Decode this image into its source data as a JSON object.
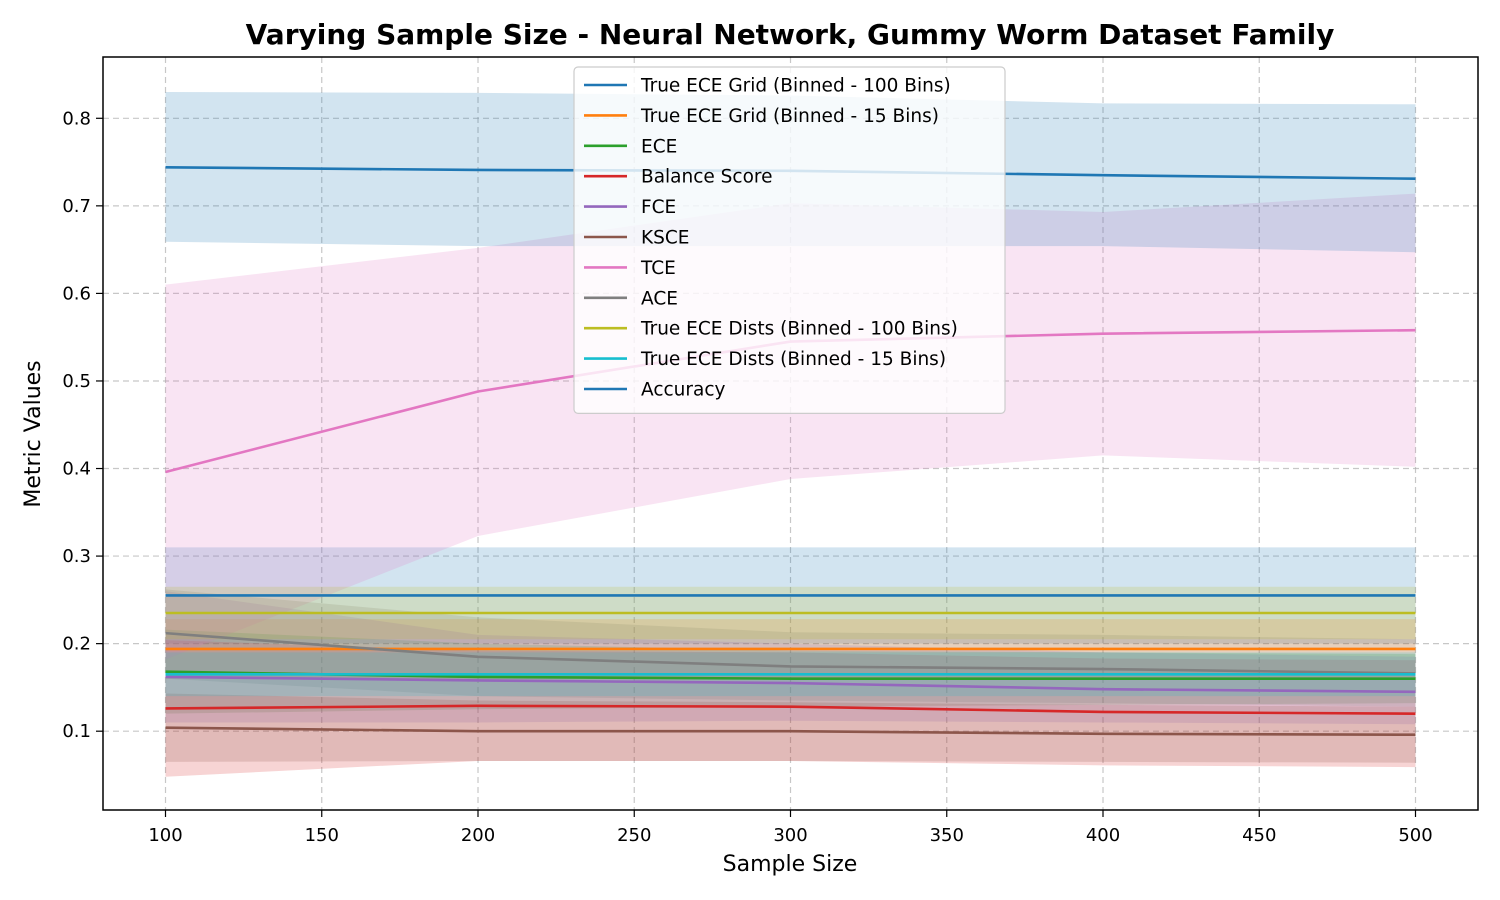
{
  "chart_data": {
    "type": "line",
    "title": "Varying Sample Size - Neural Network, Gummy Worm Dataset Family",
    "xlabel": "Sample Size",
    "ylabel": "Metric Values",
    "xlim": [
      80,
      520
    ],
    "ylim": [
      0.01,
      0.87
    ],
    "x_ticks": [
      100,
      150,
      200,
      250,
      300,
      350,
      400,
      450,
      500
    ],
    "y_ticks": [
      0.1,
      0.2,
      0.3,
      0.4,
      0.5,
      0.6,
      0.7,
      0.8
    ],
    "grid": true,
    "legend_position": "top-center",
    "x": [
      100,
      200,
      300,
      400,
      500
    ],
    "series": [
      {
        "name": "True ECE Grid (Binned - 100 Bins)",
        "color": "#1f77b4",
        "values": [
          0.255,
          0.255,
          0.255,
          0.255,
          0.255
        ],
        "lower": [
          0.2,
          0.2,
          0.2,
          0.2,
          0.2
        ],
        "upper": [
          0.31,
          0.31,
          0.31,
          0.31,
          0.31
        ]
      },
      {
        "name": "True ECE Grid (Binned - 15 Bins)",
        "color": "#ff7f0e",
        "values": [
          0.194,
          0.194,
          0.194,
          0.194,
          0.194
        ],
        "lower": [
          0.16,
          0.16,
          0.16,
          0.16,
          0.16
        ],
        "upper": [
          0.228,
          0.228,
          0.228,
          0.228,
          0.228
        ]
      },
      {
        "name": "ECE",
        "color": "#2ca02c",
        "values": [
          0.168,
          0.162,
          0.16,
          0.16,
          0.16
        ],
        "lower": [
          0.12,
          0.125,
          0.128,
          0.13,
          0.132
        ],
        "upper": [
          0.216,
          0.2,
          0.192,
          0.19,
          0.188
        ]
      },
      {
        "name": "Balance Score",
        "color": "#d62728",
        "values": [
          0.126,
          0.129,
          0.128,
          0.122,
          0.12
        ],
        "lower": [
          0.048,
          0.066,
          0.066,
          0.061,
          0.059
        ],
        "upper": [
          0.204,
          0.192,
          0.19,
          0.183,
          0.181
        ]
      },
      {
        "name": "FCE",
        "color": "#9467bd",
        "values": [
          0.162,
          0.158,
          0.155,
          0.148,
          0.145
        ],
        "lower": [
          0.11,
          0.11,
          0.112,
          0.11,
          0.108
        ],
        "upper": [
          0.26,
          0.21,
          0.2,
          0.19,
          0.185
        ]
      },
      {
        "name": "KSCE",
        "color": "#8c564b",
        "values": [
          0.104,
          0.1,
          0.1,
          0.097,
          0.096
        ],
        "lower": [
          0.065,
          0.066,
          0.066,
          0.065,
          0.064
        ],
        "upper": [
          0.143,
          0.135,
          0.133,
          0.13,
          0.128
        ]
      },
      {
        "name": "TCE",
        "color": "#e377c2",
        "values": [
          0.396,
          0.488,
          0.545,
          0.554,
          0.558
        ],
        "lower": [
          0.182,
          0.323,
          0.388,
          0.415,
          0.402
        ],
        "upper": [
          0.61,
          0.652,
          0.703,
          0.693,
          0.714
        ]
      },
      {
        "name": "ACE",
        "color": "#7f7f7f",
        "values": [
          0.212,
          0.185,
          0.174,
          0.171,
          0.166
        ],
        "lower": [
          0.16,
          0.14,
          0.135,
          0.132,
          0.128
        ],
        "upper": [
          0.262,
          0.23,
          0.213,
          0.21,
          0.205
        ]
      },
      {
        "name": "True ECE Dists (Binned - 100 Bins)",
        "color": "#bcbd22",
        "values": [
          0.235,
          0.235,
          0.235,
          0.235,
          0.235
        ],
        "lower": [
          0.205,
          0.205,
          0.205,
          0.205,
          0.205
        ],
        "upper": [
          0.265,
          0.265,
          0.265,
          0.265,
          0.265
        ]
      },
      {
        "name": "True ECE Dists (Binned - 15 Bins)",
        "color": "#17becf",
        "values": [
          0.165,
          0.165,
          0.165,
          0.165,
          0.165
        ],
        "lower": [
          0.14,
          0.14,
          0.14,
          0.14,
          0.14
        ],
        "upper": [
          0.19,
          0.19,
          0.19,
          0.19,
          0.19
        ]
      },
      {
        "name": "Accuracy",
        "color": "#1f77b4",
        "values": [
          0.744,
          0.741,
          0.74,
          0.735,
          0.731
        ],
        "lower": [
          0.659,
          0.654,
          0.654,
          0.654,
          0.647
        ],
        "upper": [
          0.83,
          0.829,
          0.826,
          0.817,
          0.816
        ]
      }
    ]
  }
}
